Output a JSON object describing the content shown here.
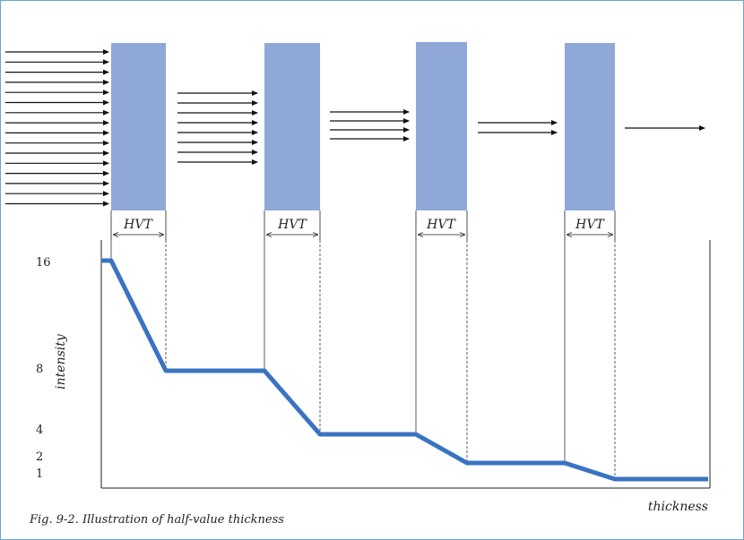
{
  "diagram": {
    "hvt_label": "HVT",
    "x_axis_label": "thickness",
    "y_axis_label": "intensity",
    "y_ticks": [
      "16",
      "8",
      "4",
      "2",
      "1"
    ],
    "arrow_counts": [
      16,
      8,
      4,
      2,
      1
    ],
    "intensity_levels": [
      16,
      8,
      4,
      2,
      1
    ],
    "absorber_count": 4,
    "colors": {
      "absorber": "#8fa8d8",
      "curve": "#3a73c2",
      "arrow": "#111111",
      "frame": "#6aa6d0"
    }
  },
  "caption": "Fig. 9-2.  Illustration of half-value thickness"
}
